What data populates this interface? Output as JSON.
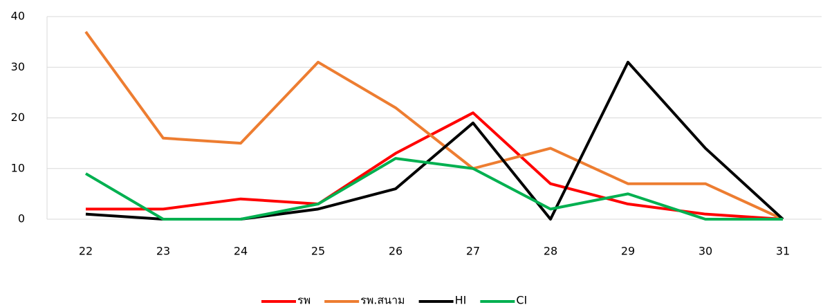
{
  "chart_data": {
    "type": "line",
    "categories": [
      "22",
      "23",
      "24",
      "25",
      "26",
      "27",
      "28",
      "29",
      "30",
      "31"
    ],
    "series": [
      {
        "name": "รพ",
        "color": "#ff0000",
        "values": [
          2,
          2,
          4,
          3,
          13,
          21,
          7,
          3,
          1,
          0
        ]
      },
      {
        "name": "รพ.สนาม",
        "color": "#ed7d31",
        "values": [
          37,
          16,
          15,
          31,
          22,
          10,
          14,
          7,
          7,
          0
        ]
      },
      {
        "name": "HI",
        "color": "#000000",
        "values": [
          1,
          0,
          0,
          2,
          6,
          19,
          0,
          31,
          14,
          0
        ]
      },
      {
        "name": "CI",
        "color": "#00b050",
        "values": [
          9,
          0,
          0,
          3,
          12,
          10,
          2,
          5,
          0,
          0
        ]
      }
    ],
    "ylim": [
      0,
      40
    ],
    "yticks": [
      0,
      10,
      20,
      30,
      40
    ],
    "grid": true,
    "legend": "bottom"
  }
}
